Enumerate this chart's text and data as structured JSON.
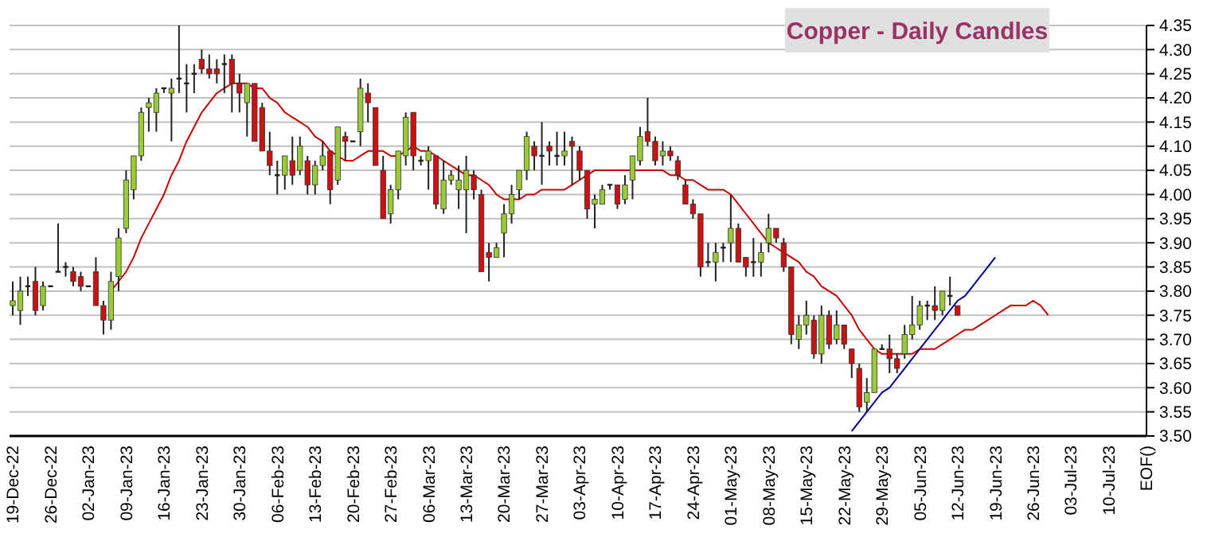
{
  "chart_data": {
    "type": "candlestick",
    "title": "Copper - Daily Candles",
    "categories": [
      "19-Dec-22",
      null,
      null,
      null,
      null,
      "26-Dec-22",
      null,
      null,
      null,
      null,
      "02-Jan-23",
      null,
      null,
      null,
      null,
      "09-Jan-23",
      null,
      null,
      null,
      null,
      "16-Jan-23",
      null,
      null,
      null,
      null,
      "23-Jan-23",
      null,
      null,
      null,
      null,
      "30-Jan-23",
      null,
      null,
      null,
      null,
      "06-Feb-23",
      null,
      null,
      null,
      null,
      "13-Feb-23",
      null,
      null,
      null,
      null,
      "20-Feb-23",
      null,
      null,
      null,
      null,
      "27-Feb-23",
      null,
      null,
      null,
      null,
      "06-Mar-23",
      null,
      null,
      null,
      null,
      "13-Mar-23",
      null,
      null,
      null,
      null,
      "20-Mar-23",
      null,
      null,
      null,
      null,
      "27-Mar-23",
      null,
      null,
      null,
      null,
      "03-Apr-23",
      null,
      null,
      null,
      null,
      "10-Apr-23",
      null,
      null,
      null,
      null,
      "17-Apr-23",
      null,
      null,
      null,
      null,
      "24-Apr-23",
      null,
      null,
      null,
      null,
      "01-May-23",
      null,
      null,
      null,
      null,
      "08-May-23",
      null,
      null,
      null,
      null,
      "15-May-23",
      null,
      null,
      null,
      null,
      "22-May-23",
      null,
      null,
      null,
      null,
      "29-May-23",
      null,
      null,
      null,
      null,
      "05-Jun-23",
      null,
      null,
      null,
      null,
      "12-Jun-23",
      null,
      null,
      null,
      null,
      "19-Jun-23",
      null,
      null,
      null,
      null,
      "26-Jun-23",
      null,
      null,
      null,
      null,
      "03-Jul-23",
      null,
      null,
      null,
      null,
      "10-Jul-23",
      null,
      null,
      null,
      null,
      "EOF()"
    ],
    "colors": [
      "#99cc33",
      "#99cc33",
      "#222222",
      "#cc1111",
      "#99cc33",
      "#222222",
      "#222222",
      "#222222",
      "#cc1111",
      "#cc1111",
      "#222222",
      "#cc1111",
      "#cc1111",
      "#99cc33",
      "#99cc33",
      "#99cc33",
      "#99cc33",
      "#99cc33",
      "#99cc33",
      "#99cc33",
      "#222222",
      "#99cc33",
      "#222222",
      "#222222",
      "#222222",
      "#cc1111",
      "#cc1111",
      "#cc1111",
      "#222222",
      "#cc1111",
      "#cc1111",
      "#99cc33",
      "#cc1111",
      "#cc1111",
      "#cc1111",
      "#222222",
      "#99cc33",
      "#cc1111",
      "#99cc33",
      "#cc1111",
      "#99cc33",
      "#99cc33",
      "#cc1111",
      "#99cc33",
      "#cc1111",
      "#222222",
      "#99cc33",
      "#cc1111",
      "#cc1111",
      "#cc1111",
      "#99cc33",
      "#99cc33",
      "#99cc33",
      "#cc1111",
      "#222222",
      "#99cc33",
      "#cc1111",
      "#99cc33",
      "#99cc33",
      "#99cc33",
      "#99cc33",
      "#cc1111",
      "#cc1111",
      "#cc1111",
      "#99cc33",
      "#99cc33",
      "#99cc33",
      "#99cc33",
      "#99cc33",
      "#cc1111",
      "#222222",
      "#cc1111",
      "#222222",
      "#99cc33",
      "#cc1111",
      "#cc1111",
      "#cc1111",
      "#99cc33",
      "#99cc33",
      "#222222",
      "#cc1111",
      "#99cc33",
      "#99cc33",
      "#99cc33",
      "#cc1111",
      "#cc1111",
      "#99cc33",
      "#cc1111",
      "#cc1111",
      "#cc1111",
      "#cc1111",
      "#cc1111",
      "#222222",
      "#99cc33",
      "#222222",
      "#99cc33",
      "#cc1111",
      "#cc1111",
      "#222222",
      "#99cc33",
      "#99cc33",
      "#cc1111",
      "#cc1111",
      "#cc1111",
      "#99cc33",
      "#99cc33",
      "#cc1111",
      "#99cc33",
      "#cc1111",
      "#99cc33",
      "#cc1111",
      "#cc1111",
      "#cc1111",
      "#99cc33",
      "#99cc33",
      "#222222",
      "#cc1111",
      "#cc1111",
      "#99cc33",
      "#99cc33",
      "#99cc33",
      "#222222",
      "#cc1111",
      "#99cc33",
      "#222222",
      "#cc1111",
      null,
      null,
      null,
      null,
      null,
      null,
      null,
      null,
      null,
      null,
      null,
      null,
      null,
      null,
      null,
      null,
      null,
      null,
      null,
      null,
      null,
      null,
      null,
      null,
      null
    ],
    "ohlc": [
      [
        3.77,
        3.82,
        3.75,
        3.78
      ],
      [
        3.76,
        3.83,
        3.73,
        3.8
      ],
      [
        3.81,
        3.83,
        3.79,
        3.81
      ],
      [
        3.82,
        3.85,
        3.75,
        3.76
      ],
      [
        3.77,
        3.82,
        3.76,
        3.81
      ],
      [
        3.81,
        3.81,
        3.81,
        3.81
      ],
      [
        3.84,
        3.94,
        3.84,
        3.84
      ],
      [
        3.85,
        3.86,
        3.83,
        3.85
      ],
      [
        3.84,
        3.85,
        3.81,
        3.82
      ],
      [
        3.83,
        3.84,
        3.8,
        3.81
      ],
      [
        3.81,
        3.81,
        3.81,
        3.81
      ],
      [
        3.84,
        3.87,
        3.77,
        3.77
      ],
      [
        3.77,
        3.78,
        3.71,
        3.74
      ],
      [
        3.74,
        3.84,
        3.72,
        3.82
      ],
      [
        3.83,
        3.93,
        3.8,
        3.91
      ],
      [
        3.93,
        4.05,
        3.92,
        4.03
      ],
      [
        4.01,
        4.08,
        3.99,
        4.08
      ],
      [
        4.08,
        4.18,
        4.07,
        4.17
      ],
      [
        4.18,
        4.2,
        4.13,
        4.19
      ],
      [
        4.17,
        4.22,
        4.13,
        4.21
      ],
      [
        4.22,
        4.22,
        4.21,
        4.22
      ],
      [
        4.21,
        4.24,
        4.11,
        4.22
      ],
      [
        4.24,
        4.35,
        4.21,
        4.24
      ],
      [
        4.23,
        4.27,
        4.17,
        4.23
      ],
      [
        4.25,
        4.27,
        4.21,
        4.25
      ],
      [
        4.28,
        4.3,
        4.25,
        4.26
      ],
      [
        4.26,
        4.29,
        4.24,
        4.25
      ],
      [
        4.26,
        4.28,
        4.23,
        4.25
      ],
      [
        4.27,
        4.29,
        4.21,
        4.27
      ],
      [
        4.28,
        4.29,
        4.17,
        4.23
      ],
      [
        4.23,
        4.25,
        4.17,
        4.21
      ],
      [
        4.19,
        4.23,
        4.12,
        4.23
      ],
      [
        4.23,
        4.23,
        4.11,
        4.11
      ],
      [
        4.18,
        4.19,
        4.09,
        4.09
      ],
      [
        4.09,
        4.13,
        4.04,
        4.06
      ],
      [
        4.04,
        4.07,
        4.0,
        4.04
      ],
      [
        4.04,
        4.08,
        4.01,
        4.08
      ],
      [
        4.07,
        4.12,
        4.02,
        4.04
      ],
      [
        4.05,
        4.12,
        4.04,
        4.1
      ],
      [
        4.07,
        4.08,
        4.0,
        4.02
      ],
      [
        4.02,
        4.07,
        4.0,
        4.06
      ],
      [
        4.06,
        4.11,
        4.05,
        4.08
      ],
      [
        4.09,
        4.09,
        3.98,
        4.01
      ],
      [
        4.03,
        4.14,
        4.02,
        4.14
      ],
      [
        4.12,
        4.13,
        4.07,
        4.11
      ],
      [
        4.11,
        4.11,
        4.11,
        4.11
      ],
      [
        4.13,
        4.24,
        4.1,
        4.22
      ],
      [
        4.21,
        4.23,
        4.15,
        4.19
      ],
      [
        4.18,
        4.18,
        4.06,
        4.06
      ],
      [
        4.05,
        4.08,
        3.95,
        3.95
      ],
      [
        3.96,
        4.02,
        3.94,
        4.01
      ],
      [
        4.01,
        4.09,
        3.99,
        4.09
      ],
      [
        4.08,
        4.17,
        4.06,
        4.16
      ],
      [
        4.17,
        4.17,
        4.05,
        4.08
      ],
      [
        4.07,
        4.08,
        4.06,
        4.07
      ],
      [
        4.07,
        4.1,
        4.01,
        4.09
      ],
      [
        4.08,
        4.08,
        3.97,
        3.98
      ],
      [
        3.97,
        4.07,
        3.96,
        4.03
      ],
      [
        4.03,
        4.05,
        4.02,
        4.04
      ],
      [
        4.01,
        4.06,
        3.97,
        4.03
      ],
      [
        4.01,
        4.08,
        3.92,
        4.05
      ],
      [
        4.04,
        4.05,
        3.99,
        4.01
      ],
      [
        4.0,
        4.01,
        3.84,
        3.84
      ],
      [
        3.88,
        3.9,
        3.82,
        3.87
      ],
      [
        3.87,
        3.9,
        3.87,
        3.89
      ],
      [
        3.92,
        3.98,
        3.87,
        3.96
      ],
      [
        3.96,
        4.02,
        3.94,
        4.0
      ],
      [
        4.01,
        4.05,
        3.99,
        4.05
      ],
      [
        4.05,
        4.13,
        4.03,
        4.12
      ],
      [
        4.1,
        4.11,
        4.05,
        4.08
      ],
      [
        4.08,
        4.15,
        4.02,
        4.08
      ],
      [
        4.1,
        4.11,
        4.06,
        4.09
      ],
      [
        4.08,
        4.13,
        4.06,
        4.08
      ],
      [
        4.08,
        4.13,
        4.06,
        4.09
      ],
      [
        4.11,
        4.12,
        4.02,
        4.1
      ],
      [
        4.09,
        4.1,
        4.03,
        4.05
      ],
      [
        4.05,
        4.05,
        3.95,
        3.97
      ],
      [
        3.98,
        4.0,
        3.93,
        3.99
      ],
      [
        3.98,
        4.02,
        3.98,
        4.01
      ],
      [
        4.02,
        4.02,
        4.01,
        4.02
      ],
      [
        4.02,
        4.02,
        3.97,
        3.98
      ],
      [
        3.99,
        4.04,
        3.98,
        4.02
      ],
      [
        4.03,
        4.08,
        3.99,
        4.08
      ],
      [
        4.07,
        4.14,
        4.06,
        4.12
      ],
      [
        4.13,
        4.2,
        4.1,
        4.11
      ],
      [
        4.11,
        4.12,
        4.06,
        4.07
      ],
      [
        4.08,
        4.11,
        4.06,
        4.09
      ],
      [
        4.09,
        4.1,
        4.07,
        4.08
      ],
      [
        4.07,
        4.08,
        4.03,
        4.04
      ],
      [
        4.02,
        4.03,
        3.98,
        3.98
      ],
      [
        3.98,
        3.99,
        3.95,
        3.96
      ],
      [
        3.96,
        3.96,
        3.83,
        3.85
      ],
      [
        3.86,
        3.9,
        3.85,
        3.86
      ],
      [
        3.86,
        3.9,
        3.82,
        3.88
      ],
      [
        3.89,
        3.9,
        3.86,
        3.89
      ],
      [
        3.9,
        4.0,
        3.86,
        3.93
      ],
      [
        3.93,
        3.94,
        3.86,
        3.86
      ],
      [
        3.87,
        3.87,
        3.83,
        3.85
      ],
      [
        3.86,
        3.91,
        3.83,
        3.86
      ],
      [
        3.86,
        3.9,
        3.83,
        3.88
      ],
      [
        3.9,
        3.96,
        3.88,
        3.93
      ],
      [
        3.93,
        3.93,
        3.9,
        3.91
      ],
      [
        3.9,
        3.91,
        3.84,
        3.85
      ],
      [
        3.85,
        3.85,
        3.69,
        3.71
      ],
      [
        3.7,
        3.75,
        3.68,
        3.73
      ],
      [
        3.73,
        3.78,
        3.71,
        3.75
      ],
      [
        3.74,
        3.75,
        3.66,
        3.67
      ],
      [
        3.67,
        3.77,
        3.65,
        3.75
      ],
      [
        3.75,
        3.76,
        3.68,
        3.69
      ],
      [
        3.7,
        3.76,
        3.69,
        3.73
      ],
      [
        3.73,
        3.73,
        3.68,
        3.69
      ],
      [
        3.68,
        3.68,
        3.62,
        3.65
      ],
      [
        3.64,
        3.65,
        3.55,
        3.56
      ],
      [
        3.57,
        3.62,
        3.55,
        3.59
      ],
      [
        3.59,
        3.68,
        3.59,
        3.68
      ],
      [
        3.68,
        3.69,
        3.68,
        3.68
      ],
      [
        3.68,
        3.71,
        3.63,
        3.66
      ],
      [
        3.66,
        3.67,
        3.63,
        3.64
      ],
      [
        3.67,
        3.73,
        3.66,
        3.71
      ],
      [
        3.71,
        3.79,
        3.7,
        3.73
      ],
      [
        3.73,
        3.78,
        3.72,
        3.77
      ],
      [
        3.77,
        3.78,
        3.74,
        3.77
      ],
      [
        3.77,
        3.81,
        3.74,
        3.76
      ],
      [
        3.76,
        3.8,
        3.75,
        3.8
      ],
      [
        3.79,
        3.83,
        3.77,
        3.79
      ],
      [
        3.77,
        3.77,
        3.75,
        3.75
      ],
      null,
      null,
      null,
      null,
      null,
      null,
      null,
      null,
      null,
      null,
      null,
      null,
      null,
      null,
      null,
      null,
      null,
      null,
      null,
      null,
      null,
      null,
      null,
      null,
      null
    ],
    "series": [
      {
        "type": "line",
        "color": "#cc0000",
        "values": [
          null,
          null,
          null,
          null,
          null,
          null,
          null,
          null,
          null,
          null,
          null,
          null,
          null,
          3.8,
          3.82,
          3.84,
          3.87,
          3.91,
          3.94,
          3.97,
          4.0,
          4.04,
          4.07,
          4.11,
          4.14,
          4.17,
          4.19,
          4.21,
          4.22,
          4.23,
          4.23,
          4.23,
          4.22,
          4.22,
          4.2,
          4.19,
          4.17,
          4.16,
          4.15,
          4.14,
          4.12,
          4.11,
          4.09,
          4.08,
          4.07,
          4.07,
          4.08,
          4.09,
          4.09,
          4.09,
          4.08,
          4.08,
          4.09,
          4.1,
          4.09,
          4.09,
          4.08,
          4.07,
          4.06,
          4.05,
          4.04,
          4.04,
          4.03,
          4.02,
          4.0,
          3.99,
          3.99,
          3.99,
          4.0,
          4.0,
          4.01,
          4.01,
          4.01,
          4.01,
          4.02,
          4.03,
          4.04,
          4.05,
          4.05,
          4.05,
          4.05,
          4.05,
          4.05,
          4.05,
          4.05,
          4.05,
          4.05,
          4.04,
          4.04,
          4.03,
          4.03,
          4.02,
          4.01,
          4.01,
          4.01,
          4.0,
          3.98,
          3.96,
          3.94,
          3.92,
          3.9,
          3.89,
          3.88,
          3.87,
          3.86,
          3.84,
          3.83,
          3.81,
          3.8,
          3.79,
          3.77,
          3.75,
          3.72,
          3.7,
          3.68,
          3.67,
          3.67,
          3.67,
          3.67,
          3.67,
          3.68,
          3.68,
          3.68,
          3.69,
          3.7,
          3.71,
          3.72,
          3.72,
          3.73,
          3.74,
          3.75,
          3.76,
          3.77,
          3.77,
          3.77,
          3.78,
          3.77,
          3.75,
          null,
          null,
          null,
          null,
          null,
          null,
          null,
          null,
          null,
          null,
          null,
          null,
          null
        ]
      },
      {
        "type": "line",
        "color": "#000099",
        "values": [
          null,
          null,
          null,
          null,
          null,
          null,
          null,
          null,
          null,
          null,
          null,
          null,
          null,
          null,
          null,
          null,
          null,
          null,
          null,
          null,
          null,
          null,
          null,
          null,
          null,
          null,
          null,
          null,
          null,
          null,
          null,
          null,
          null,
          null,
          null,
          null,
          null,
          null,
          null,
          null,
          null,
          null,
          null,
          null,
          null,
          null,
          null,
          null,
          null,
          null,
          null,
          null,
          null,
          null,
          null,
          null,
          null,
          null,
          null,
          null,
          null,
          null,
          null,
          null,
          null,
          null,
          null,
          null,
          null,
          null,
          null,
          null,
          null,
          null,
          null,
          null,
          null,
          null,
          null,
          null,
          null,
          null,
          null,
          null,
          null,
          null,
          null,
          null,
          null,
          null,
          null,
          null,
          null,
          null,
          null,
          null,
          null,
          null,
          null,
          null,
          null,
          null,
          null,
          null,
          null,
          null,
          null,
          null,
          null,
          null,
          null,
          3.51,
          3.53,
          3.55,
          3.57,
          3.59,
          3.6,
          3.62,
          3.64,
          3.66,
          3.68,
          3.7,
          3.72,
          3.74,
          3.76,
          3.78,
          3.79,
          3.81,
          3.83,
          3.85,
          3.87,
          null,
          null,
          null,
          null,
          null,
          null,
          null,
          null,
          null,
          null,
          null,
          null,
          null,
          null,
          null,
          null,
          null,
          null,
          null,
          null
        ]
      }
    ],
    "ylim": [
      3.5,
      4.35
    ],
    "yticks": [
      {
        "value": 3.5,
        "label": "3.50"
      },
      {
        "value": 3.55,
        "label": "3.55"
      },
      {
        "value": 3.6,
        "label": "3.60"
      },
      {
        "value": 3.65,
        "label": "3.65"
      },
      {
        "value": 3.7,
        "label": "3.70"
      },
      {
        "value": 3.75,
        "label": "3.75"
      },
      {
        "value": 3.8,
        "label": "3.80"
      },
      {
        "value": 3.85,
        "label": "3.85"
      },
      {
        "value": 3.9,
        "label": "3.90"
      },
      {
        "value": 3.95,
        "label": "3.95"
      },
      {
        "value": 4.0,
        "label": "4.00"
      },
      {
        "value": 4.05,
        "label": "4.05"
      },
      {
        "value": 4.1,
        "label": "4.10"
      },
      {
        "value": 4.15,
        "label": "4.15"
      },
      {
        "value": 4.2,
        "label": "4.20"
      },
      {
        "value": 4.25,
        "label": "4.25"
      },
      {
        "value": 4.3,
        "label": "4.30"
      },
      {
        "value": 4.35,
        "label": "4.35"
      }
    ],
    "grid": "y"
  }
}
